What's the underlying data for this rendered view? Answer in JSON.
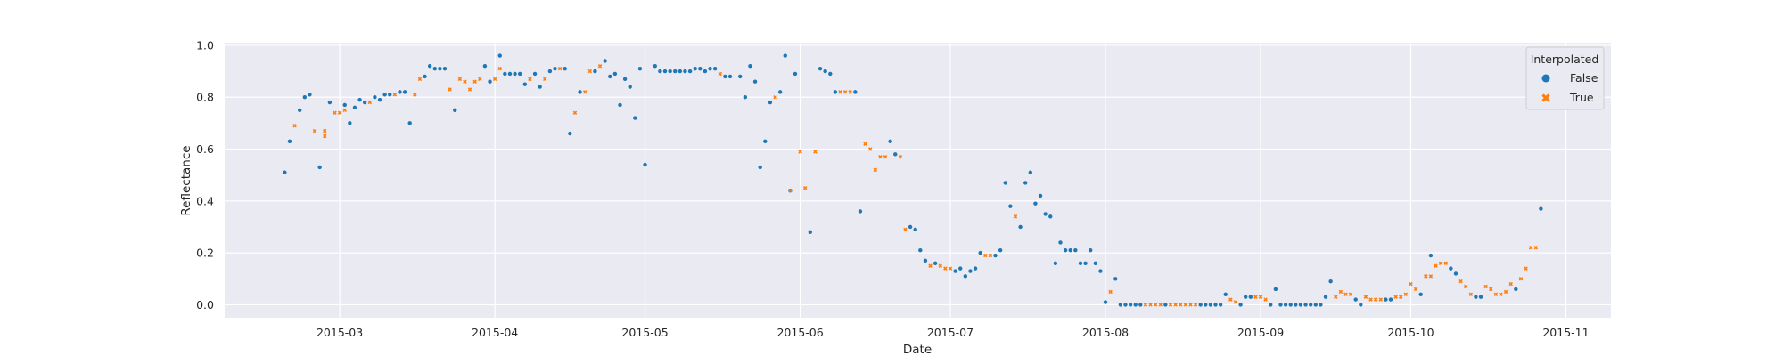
{
  "chart_data": {
    "type": "scatter",
    "xlabel": "Date",
    "ylabel": "Reflectance",
    "xlim": [
      "2015-02-06",
      "2015-11-10"
    ],
    "ylim": [
      -0.05,
      1.01
    ],
    "x_ticks": [
      "2015-03-01",
      "2015-04-01",
      "2015-05-01",
      "2015-06-01",
      "2015-07-01",
      "2015-08-01",
      "2015-09-01",
      "2015-10-01",
      "2015-11-01"
    ],
    "x_tick_labels": [
      "2015-03",
      "2015-04",
      "2015-05",
      "2015-06",
      "2015-07",
      "2015-08",
      "2015-09",
      "2015-10",
      "2015-11"
    ],
    "y_ticks": [
      0.0,
      0.2,
      0.4,
      0.6,
      0.8,
      1.0
    ],
    "y_tick_labels": [
      "0.0",
      "0.2",
      "0.4",
      "0.6",
      "0.8",
      "1.0"
    ],
    "grid": true,
    "legend": {
      "title": "Interpolated",
      "placement": "top-right",
      "entries": [
        "False",
        "True"
      ]
    },
    "series": [
      {
        "name": "False",
        "color": "#1f77b4",
        "marker": "circle",
        "points": [
          [
            "2015-02-18",
            0.51
          ],
          [
            "2015-02-19",
            0.63
          ],
          [
            "2015-02-21",
            0.75
          ],
          [
            "2015-02-22",
            0.8
          ],
          [
            "2015-02-23",
            0.81
          ],
          [
            "2015-02-25",
            0.53
          ],
          [
            "2015-02-27",
            0.78
          ],
          [
            "2015-03-02",
            0.77
          ],
          [
            "2015-03-03",
            0.7
          ],
          [
            "2015-03-04",
            0.76
          ],
          [
            "2015-03-05",
            0.79
          ],
          [
            "2015-03-06",
            0.78
          ],
          [
            "2015-03-08",
            0.8
          ],
          [
            "2015-03-09",
            0.79
          ],
          [
            "2015-03-10",
            0.81
          ],
          [
            "2015-03-11",
            0.81
          ],
          [
            "2015-03-13",
            0.82
          ],
          [
            "2015-03-14",
            0.82
          ],
          [
            "2015-03-15",
            0.7
          ],
          [
            "2015-03-18",
            0.88
          ],
          [
            "2015-03-19",
            0.92
          ],
          [
            "2015-03-20",
            0.91
          ],
          [
            "2015-03-21",
            0.91
          ],
          [
            "2015-03-22",
            0.91
          ],
          [
            "2015-03-24",
            0.75
          ],
          [
            "2015-03-30",
            0.92
          ],
          [
            "2015-03-31",
            0.86
          ],
          [
            "2015-04-02",
            0.96
          ],
          [
            "2015-04-03",
            0.89
          ],
          [
            "2015-04-04",
            0.89
          ],
          [
            "2015-04-05",
            0.89
          ],
          [
            "2015-04-06",
            0.89
          ],
          [
            "2015-04-07",
            0.85
          ],
          [
            "2015-04-09",
            0.89
          ],
          [
            "2015-04-10",
            0.84
          ],
          [
            "2015-04-12",
            0.9
          ],
          [
            "2015-04-13",
            0.91
          ],
          [
            "2015-04-15",
            0.91
          ],
          [
            "2015-04-16",
            0.66
          ],
          [
            "2015-04-18",
            0.82
          ],
          [
            "2015-04-21",
            0.9
          ],
          [
            "2015-04-23",
            0.94
          ],
          [
            "2015-04-24",
            0.88
          ],
          [
            "2015-04-25",
            0.89
          ],
          [
            "2015-04-26",
            0.77
          ],
          [
            "2015-04-27",
            0.87
          ],
          [
            "2015-04-28",
            0.84
          ],
          [
            "2015-04-29",
            0.72
          ],
          [
            "2015-04-30",
            0.91
          ],
          [
            "2015-05-01",
            0.54
          ],
          [
            "2015-05-03",
            0.92
          ],
          [
            "2015-05-04",
            0.9
          ],
          [
            "2015-05-05",
            0.9
          ],
          [
            "2015-05-06",
            0.9
          ],
          [
            "2015-05-07",
            0.9
          ],
          [
            "2015-05-08",
            0.9
          ],
          [
            "2015-05-09",
            0.9
          ],
          [
            "2015-05-10",
            0.9
          ],
          [
            "2015-05-11",
            0.91
          ],
          [
            "2015-05-12",
            0.91
          ],
          [
            "2015-05-13",
            0.9
          ],
          [
            "2015-05-14",
            0.91
          ],
          [
            "2015-05-15",
            0.91
          ],
          [
            "2015-05-17",
            0.88
          ],
          [
            "2015-05-18",
            0.88
          ],
          [
            "2015-05-20",
            0.88
          ],
          [
            "2015-05-21",
            0.8
          ],
          [
            "2015-05-22",
            0.92
          ],
          [
            "2015-05-23",
            0.86
          ],
          [
            "2015-05-24",
            0.53
          ],
          [
            "2015-05-25",
            0.63
          ],
          [
            "2015-05-26",
            0.78
          ],
          [
            "2015-05-28",
            0.82
          ],
          [
            "2015-05-29",
            0.96
          ],
          [
            "2015-05-30",
            0.44
          ],
          [
            "2015-05-31",
            0.89
          ],
          [
            "2015-06-03",
            0.28
          ],
          [
            "2015-06-05",
            0.91
          ],
          [
            "2015-06-06",
            0.9
          ],
          [
            "2015-06-07",
            0.89
          ],
          [
            "2015-06-08",
            0.82
          ],
          [
            "2015-06-12",
            0.82
          ],
          [
            "2015-06-13",
            0.36
          ],
          [
            "2015-06-19",
            0.63
          ],
          [
            "2015-06-20",
            0.58
          ],
          [
            "2015-06-23",
            0.3
          ],
          [
            "2015-06-24",
            0.29
          ],
          [
            "2015-06-25",
            0.21
          ],
          [
            "2015-06-26",
            0.17
          ],
          [
            "2015-06-28",
            0.16
          ],
          [
            "2015-07-02",
            0.13
          ],
          [
            "2015-07-03",
            0.14
          ],
          [
            "2015-07-04",
            0.11
          ],
          [
            "2015-07-05",
            0.13
          ],
          [
            "2015-07-06",
            0.14
          ],
          [
            "2015-07-07",
            0.2
          ],
          [
            "2015-07-10",
            0.19
          ],
          [
            "2015-07-11",
            0.21
          ],
          [
            "2015-07-12",
            0.47
          ],
          [
            "2015-07-13",
            0.38
          ],
          [
            "2015-07-15",
            0.3
          ],
          [
            "2015-07-16",
            0.47
          ],
          [
            "2015-07-17",
            0.51
          ],
          [
            "2015-07-18",
            0.39
          ],
          [
            "2015-07-19",
            0.42
          ],
          [
            "2015-07-20",
            0.35
          ],
          [
            "2015-07-21",
            0.34
          ],
          [
            "2015-07-22",
            0.16
          ],
          [
            "2015-07-23",
            0.24
          ],
          [
            "2015-07-24",
            0.21
          ],
          [
            "2015-07-25",
            0.21
          ],
          [
            "2015-07-26",
            0.21
          ],
          [
            "2015-07-27",
            0.16
          ],
          [
            "2015-07-28",
            0.16
          ],
          [
            "2015-07-29",
            0.21
          ],
          [
            "2015-07-30",
            0.16
          ],
          [
            "2015-07-31",
            0.13
          ],
          [
            "2015-08-01",
            0.01
          ],
          [
            "2015-08-03",
            0.1
          ],
          [
            "2015-08-04",
            0.0
          ],
          [
            "2015-08-05",
            0.0
          ],
          [
            "2015-08-06",
            0.0
          ],
          [
            "2015-08-07",
            0.0
          ],
          [
            "2015-08-08",
            0.0
          ],
          [
            "2015-08-13",
            0.0
          ],
          [
            "2015-08-20",
            0.0
          ],
          [
            "2015-08-21",
            0.0
          ],
          [
            "2015-08-22",
            0.0
          ],
          [
            "2015-08-23",
            0.0
          ],
          [
            "2015-08-24",
            0.0
          ],
          [
            "2015-08-25",
            0.04
          ],
          [
            "2015-08-28",
            0.0
          ],
          [
            "2015-08-29",
            0.03
          ],
          [
            "2015-08-30",
            0.03
          ],
          [
            "2015-09-03",
            0.0
          ],
          [
            "2015-09-04",
            0.06
          ],
          [
            "2015-09-05",
            0.0
          ],
          [
            "2015-09-06",
            0.0
          ],
          [
            "2015-09-07",
            0.0
          ],
          [
            "2015-09-08",
            0.0
          ],
          [
            "2015-09-09",
            0.0
          ],
          [
            "2015-09-10",
            0.0
          ],
          [
            "2015-09-11",
            0.0
          ],
          [
            "2015-09-12",
            0.0
          ],
          [
            "2015-09-13",
            0.0
          ],
          [
            "2015-09-14",
            0.03
          ],
          [
            "2015-09-15",
            0.09
          ],
          [
            "2015-09-20",
            0.02
          ],
          [
            "2015-09-21",
            0.0
          ],
          [
            "2015-09-26",
            0.02
          ],
          [
            "2015-09-27",
            0.02
          ],
          [
            "2015-10-03",
            0.04
          ],
          [
            "2015-10-05",
            0.19
          ],
          [
            "2015-10-09",
            0.14
          ],
          [
            "2015-10-10",
            0.12
          ],
          [
            "2015-10-14",
            0.03
          ],
          [
            "2015-10-15",
            0.03
          ],
          [
            "2015-10-22",
            0.06
          ],
          [
            "2015-10-27",
            0.37
          ]
        ]
      },
      {
        "name": "True",
        "color": "#ff7f0e",
        "marker": "x",
        "points": [
          [
            "2015-02-20",
            0.69
          ],
          [
            "2015-02-24",
            0.67
          ],
          [
            "2015-02-26",
            0.67
          ],
          [
            "2015-02-26",
            0.65
          ],
          [
            "2015-02-28",
            0.74
          ],
          [
            "2015-03-01",
            0.74
          ],
          [
            "2015-03-02",
            0.75
          ],
          [
            "2015-03-07",
            0.78
          ],
          [
            "2015-03-12",
            0.81
          ],
          [
            "2015-03-16",
            0.81
          ],
          [
            "2015-03-17",
            0.87
          ],
          [
            "2015-03-23",
            0.83
          ],
          [
            "2015-03-25",
            0.87
          ],
          [
            "2015-03-26",
            0.86
          ],
          [
            "2015-03-27",
            0.83
          ],
          [
            "2015-03-28",
            0.86
          ],
          [
            "2015-03-29",
            0.87
          ],
          [
            "2015-04-01",
            0.87
          ],
          [
            "2015-04-02",
            0.91
          ],
          [
            "2015-04-08",
            0.87
          ],
          [
            "2015-04-11",
            0.87
          ],
          [
            "2015-04-14",
            0.91
          ],
          [
            "2015-04-17",
            0.74
          ],
          [
            "2015-04-19",
            0.82
          ],
          [
            "2015-04-20",
            0.9
          ],
          [
            "2015-04-22",
            0.92
          ],
          [
            "2015-05-16",
            0.89
          ],
          [
            "2015-05-27",
            0.8
          ],
          [
            "2015-05-30",
            0.44
          ],
          [
            "2015-06-01",
            0.59
          ],
          [
            "2015-06-02",
            0.45
          ],
          [
            "2015-06-04",
            0.59
          ],
          [
            "2015-06-09",
            0.82
          ],
          [
            "2015-06-10",
            0.82
          ],
          [
            "2015-06-11",
            0.82
          ],
          [
            "2015-06-14",
            0.62
          ],
          [
            "2015-06-15",
            0.6
          ],
          [
            "2015-06-16",
            0.52
          ],
          [
            "2015-06-17",
            0.57
          ],
          [
            "2015-06-18",
            0.57
          ],
          [
            "2015-06-21",
            0.57
          ],
          [
            "2015-06-22",
            0.29
          ],
          [
            "2015-06-27",
            0.15
          ],
          [
            "2015-06-29",
            0.15
          ],
          [
            "2015-06-30",
            0.14
          ],
          [
            "2015-07-01",
            0.14
          ],
          [
            "2015-07-08",
            0.19
          ],
          [
            "2015-07-09",
            0.19
          ],
          [
            "2015-07-14",
            0.34
          ],
          [
            "2015-08-02",
            0.05
          ],
          [
            "2015-08-09",
            0.0
          ],
          [
            "2015-08-10",
            0.0
          ],
          [
            "2015-08-11",
            0.0
          ],
          [
            "2015-08-12",
            0.0
          ],
          [
            "2015-08-14",
            0.0
          ],
          [
            "2015-08-15",
            0.0
          ],
          [
            "2015-08-16",
            0.0
          ],
          [
            "2015-08-17",
            0.0
          ],
          [
            "2015-08-18",
            0.0
          ],
          [
            "2015-08-19",
            0.0
          ],
          [
            "2015-08-26",
            0.02
          ],
          [
            "2015-08-27",
            0.01
          ],
          [
            "2015-08-31",
            0.03
          ],
          [
            "2015-09-01",
            0.03
          ],
          [
            "2015-09-02",
            0.02
          ],
          [
            "2015-09-16",
            0.03
          ],
          [
            "2015-09-17",
            0.05
          ],
          [
            "2015-09-18",
            0.04
          ],
          [
            "2015-09-19",
            0.04
          ],
          [
            "2015-09-22",
            0.03
          ],
          [
            "2015-09-23",
            0.02
          ],
          [
            "2015-09-24",
            0.02
          ],
          [
            "2015-09-25",
            0.02
          ],
          [
            "2015-09-28",
            0.03
          ],
          [
            "2015-09-29",
            0.03
          ],
          [
            "2015-09-30",
            0.04
          ],
          [
            "2015-10-01",
            0.08
          ],
          [
            "2015-10-02",
            0.06
          ],
          [
            "2015-10-04",
            0.11
          ],
          [
            "2015-10-05",
            0.11
          ],
          [
            "2015-10-06",
            0.15
          ],
          [
            "2015-10-07",
            0.16
          ],
          [
            "2015-10-08",
            0.16
          ],
          [
            "2015-10-11",
            0.09
          ],
          [
            "2015-10-12",
            0.07
          ],
          [
            "2015-10-13",
            0.04
          ],
          [
            "2015-10-16",
            0.07
          ],
          [
            "2015-10-17",
            0.06
          ],
          [
            "2015-10-18",
            0.04
          ],
          [
            "2015-10-19",
            0.04
          ],
          [
            "2015-10-20",
            0.05
          ],
          [
            "2015-10-21",
            0.08
          ],
          [
            "2015-10-23",
            0.1
          ],
          [
            "2015-10-24",
            0.14
          ],
          [
            "2015-10-25",
            0.22
          ],
          [
            "2015-10-26",
            0.22
          ]
        ]
      }
    ]
  }
}
